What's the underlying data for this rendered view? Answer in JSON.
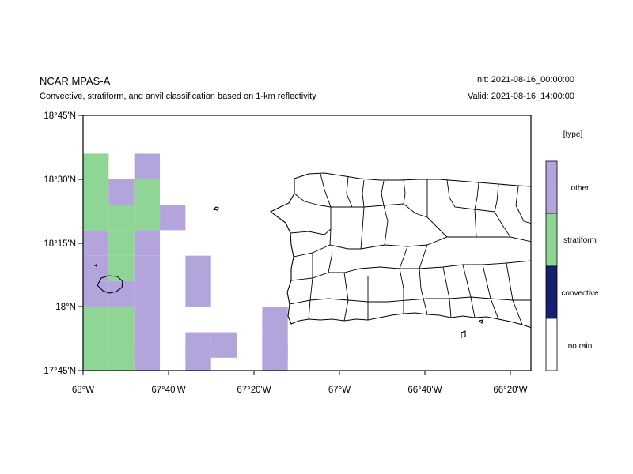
{
  "header": {
    "title": "NCAR MPAS-A",
    "subtitle": "Convective, stratiform, and anvil classification based on 1-km reflectivity",
    "init": "Init: 2021-08-16_00:00:00",
    "valid": "Valid: 2021-08-16_14:00:00"
  },
  "map": {
    "lon_range": [
      -68.0,
      -66.25
    ],
    "lat_range": [
      17.75,
      18.75
    ],
    "lat_ticks": [
      "18°45'N",
      "18°30'N",
      "18°15'N",
      "18°N",
      "17°45'N"
    ],
    "lon_ticks": [
      "68°W",
      "67°40'W",
      "67°20'W",
      "67°W",
      "66°40'W",
      "66°20'W"
    ],
    "coastline_features": [
      "Puerto Rico",
      "Mona Island",
      "Desecheo Island"
    ]
  },
  "legend": {
    "title": "[type]",
    "entries": [
      {
        "label": "other",
        "color": "#b3a5dc"
      },
      {
        "label": "stratiform",
        "color": "#8fd696"
      },
      {
        "label": "convective",
        "color": "#152073"
      },
      {
        "label": "no rain",
        "color": "#ffffff"
      }
    ]
  },
  "grid_cells": [
    {
      "lon": -67.95,
      "lat": 18.35,
      "type": "stratiform"
    },
    {
      "lon": -67.95,
      "lat": 18.45,
      "type": "stratiform"
    },
    {
      "lon": -67.95,
      "lat": 18.55,
      "type": "stratiform"
    },
    {
      "lon": -67.85,
      "lat": 18.35,
      "type": "stratiform"
    },
    {
      "lon": -67.85,
      "lat": 18.45,
      "type": "other"
    },
    {
      "lon": -67.75,
      "lat": 18.35,
      "type": "stratiform"
    },
    {
      "lon": -67.75,
      "lat": 18.45,
      "type": "stratiform"
    },
    {
      "lon": -67.75,
      "lat": 18.55,
      "type": "other"
    },
    {
      "lon": -67.65,
      "lat": 18.35,
      "type": "other"
    },
    {
      "lon": -67.95,
      "lat": 18.25,
      "type": "other"
    },
    {
      "lon": -67.85,
      "lat": 18.25,
      "type": "stratiform"
    },
    {
      "lon": -67.75,
      "lat": 18.25,
      "type": "other"
    },
    {
      "lon": -67.95,
      "lat": 18.15,
      "type": "other"
    },
    {
      "lon": -67.85,
      "lat": 18.15,
      "type": "stratiform"
    },
    {
      "lon": -67.75,
      "lat": 18.15,
      "type": "other"
    },
    {
      "lon": -67.95,
      "lat": 18.05,
      "type": "other"
    },
    {
      "lon": -67.85,
      "lat": 18.05,
      "type": "other"
    },
    {
      "lon": -67.75,
      "lat": 18.05,
      "type": "other"
    },
    {
      "lon": -67.95,
      "lat": 17.95,
      "type": "stratiform"
    },
    {
      "lon": -67.85,
      "lat": 17.95,
      "type": "stratiform"
    },
    {
      "lon": -67.75,
      "lat": 17.95,
      "type": "other"
    },
    {
      "lon": -67.95,
      "lat": 17.85,
      "type": "stratiform"
    },
    {
      "lon": -67.85,
      "lat": 17.85,
      "type": "stratiform"
    },
    {
      "lon": -67.75,
      "lat": 17.85,
      "type": "other"
    },
    {
      "lon": -67.95,
      "lat": 17.8,
      "type": "stratiform"
    },
    {
      "lon": -67.85,
      "lat": 17.8,
      "type": "stratiform"
    },
    {
      "lon": -67.75,
      "lat": 17.8,
      "type": "other"
    },
    {
      "lon": -67.55,
      "lat": 18.15,
      "type": "other"
    },
    {
      "lon": -67.55,
      "lat": 18.05,
      "type": "other"
    },
    {
      "lon": -67.55,
      "lat": 17.85,
      "type": "other"
    },
    {
      "lon": -67.55,
      "lat": 17.8,
      "type": "other"
    },
    {
      "lon": -67.45,
      "lat": 17.85,
      "type": "other"
    },
    {
      "lon": -67.25,
      "lat": 17.95,
      "type": "other"
    },
    {
      "lon": -67.25,
      "lat": 17.85,
      "type": "other"
    },
    {
      "lon": -67.25,
      "lat": 17.8,
      "type": "other"
    }
  ]
}
